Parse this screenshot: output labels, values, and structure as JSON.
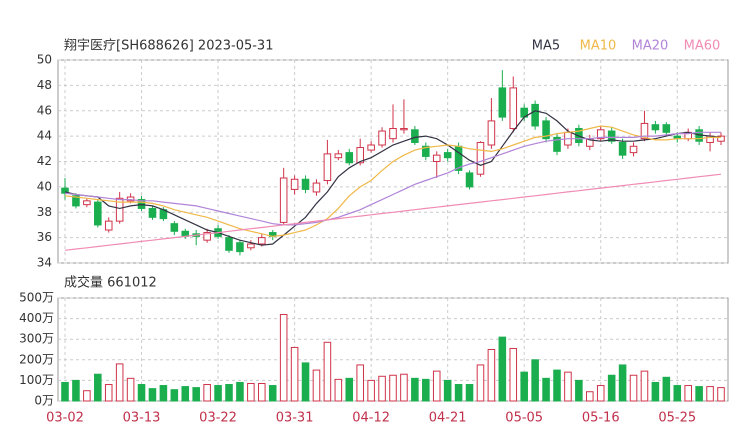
{
  "chart_data": {
    "type": "candlestick",
    "title": "翔宇医疗[SH688626] 2023-05-31",
    "categories": [
      "03-02",
      null,
      null,
      null,
      null,
      null,
      null,
      "03-13",
      null,
      null,
      null,
      null,
      null,
      null,
      "03-22",
      null,
      null,
      null,
      null,
      null,
      null,
      "03-31",
      null,
      null,
      null,
      null,
      null,
      null,
      "04-12",
      null,
      null,
      null,
      null,
      null,
      null,
      "04-21",
      null,
      null,
      null,
      null,
      null,
      null,
      "05-05",
      null,
      null,
      null,
      null,
      null,
      null,
      "05-16",
      null,
      null,
      null,
      null,
      null,
      null,
      "05-25",
      null,
      null,
      null,
      null
    ],
    "open": [
      39.9,
      39.3,
      38.6,
      38.8,
      36.6,
      37.3,
      38.9,
      39.0,
      38.3,
      38.2,
      37.1,
      36.5,
      36.3,
      35.8,
      36.7,
      36.0,
      35.6,
      35.2,
      35.5,
      36.4,
      37.2,
      39.8,
      40.6,
      39.6,
      40.5,
      42.3,
      42.7,
      41.9,
      42.9,
      43.3,
      43.8,
      44.5,
      44.5,
      43.2,
      42.0,
      42.7,
      43.2,
      41.1,
      41.0,
      43.3,
      47.8,
      44.6,
      46.2,
      46.5,
      45.2,
      43.9,
      43.3,
      44.6,
      43.2,
      43.8,
      44.4,
      43.5,
      42.7,
      43.8,
      44.9,
      44.9,
      44.0,
      43.8,
      44.5,
      43.5,
      43.6
    ],
    "high": [
      40.7,
      39.5,
      39.1,
      39.0,
      37.6,
      39.6,
      39.5,
      39.3,
      38.5,
      38.4,
      37.3,
      36.7,
      36.6,
      36.7,
      37.0,
      36.2,
      35.8,
      35.8,
      36.3,
      36.6,
      41.5,
      40.9,
      40.9,
      40.6,
      43.7,
      42.9,
      43.0,
      43.8,
      43.6,
      44.7,
      46.5,
      46.9,
      44.8,
      43.5,
      42.8,
      43.0,
      43.5,
      41.3,
      43.6,
      47.0,
      49.2,
      48.7,
      46.5,
      46.8,
      45.5,
      44.2,
      44.6,
      44.9,
      44.1,
      44.8,
      44.7,
      43.8,
      43.5,
      46.0,
      45.2,
      45.1,
      44.3,
      44.6,
      44.8,
      44.3,
      44.3
    ],
    "low": [
      39.0,
      38.3,
      38.4,
      36.8,
      36.4,
      37.1,
      38.7,
      38.1,
      37.4,
      37.3,
      36.2,
      35.9,
      35.4,
      35.6,
      35.9,
      34.8,
      34.6,
      35.0,
      35.3,
      35.8,
      37.0,
      39.4,
      39.5,
      39.3,
      40.2,
      42.1,
      41.7,
      41.7,
      42.7,
      43.1,
      43.5,
      44.2,
      43.3,
      42.1,
      40.7,
      42.0,
      41.0,
      39.8,
      40.8,
      43.0,
      45.2,
      44.3,
      45.2,
      44.5,
      43.5,
      42.5,
      43.0,
      43.2,
      42.9,
      43.6,
      43.4,
      42.2,
      42.4,
      43.6,
      44.2,
      44.0,
      43.5,
      43.6,
      43.3,
      42.8,
      43.3
    ],
    "close": [
      39.5,
      38.5,
      38.9,
      37.0,
      37.3,
      39.1,
      39.2,
      38.3,
      37.6,
      37.5,
      36.5,
      36.1,
      36.1,
      36.4,
      36.1,
      35.0,
      34.9,
      35.5,
      36.0,
      36.1,
      40.7,
      40.6,
      39.8,
      40.3,
      42.6,
      42.6,
      41.9,
      43.1,
      43.3,
      44.4,
      44.6,
      44.6,
      43.5,
      42.4,
      42.5,
      42.3,
      41.3,
      40.0,
      43.5,
      45.2,
      45.5,
      47.8,
      45.5,
      44.8,
      43.8,
      42.8,
      44.3,
      43.5,
      43.8,
      44.5,
      43.6,
      42.5,
      43.2,
      45.0,
      44.5,
      44.3,
      43.8,
      44.3,
      43.6,
      44.0,
      44.0
    ],
    "up_color": "#d0334a",
    "down_color": "#1aae4f",
    "ylim": [
      34,
      50
    ],
    "yticks": [
      34,
      36,
      38,
      40,
      42,
      44,
      46,
      48,
      50
    ],
    "grid": true,
    "ma": [
      {
        "name": "MA5",
        "color": "#333344",
        "values": [
          39.6,
          39.4,
          39.3,
          39.2,
          38.5,
          38.3,
          38.5,
          38.6,
          38.5,
          38.2,
          37.8,
          37.4,
          37.0,
          36.6,
          36.4,
          36.1,
          35.8,
          35.6,
          35.4,
          35.5,
          36.2,
          36.9,
          37.6,
          38.7,
          39.6,
          40.8,
          41.5,
          42.0,
          42.3,
          42.8,
          43.3,
          43.6,
          43.9,
          44.0,
          43.8,
          43.3,
          42.7,
          42.1,
          41.7,
          42.0,
          43.2,
          44.4,
          45.5,
          46.0,
          45.8,
          45.2,
          44.4,
          44.0,
          43.7,
          43.6,
          43.7,
          43.6,
          43.6,
          43.7,
          43.8,
          44.0,
          44.2,
          44.3,
          44.1,
          44.0,
          43.9
        ]
      },
      {
        "name": "MA10",
        "color": "#f0b848",
        "values": [
          39.3,
          39.2,
          39.1,
          39.0,
          38.9,
          38.8,
          38.8,
          38.8,
          38.7,
          38.5,
          38.2,
          38.0,
          37.8,
          37.6,
          37.3,
          37.0,
          36.7,
          36.5,
          36.3,
          36.1,
          36.2,
          36.4,
          36.6,
          37.0,
          37.5,
          38.3,
          39.3,
          40.0,
          40.5,
          41.3,
          42.0,
          42.5,
          42.9,
          43.1,
          43.2,
          43.3,
          43.2,
          43.0,
          42.9,
          42.8,
          43.0,
          43.3,
          43.6,
          43.9,
          44.0,
          44.2,
          44.3,
          44.4,
          44.6,
          44.8,
          44.7,
          44.4,
          44.1,
          43.9,
          43.7,
          43.7,
          43.8,
          43.8,
          43.8,
          43.9,
          43.9
        ]
      },
      {
        "name": "MA20",
        "color": "#b184d8",
        "values": [
          39.5,
          39.4,
          39.3,
          39.2,
          39.1,
          39.0,
          39.0,
          38.9,
          38.9,
          38.8,
          38.7,
          38.6,
          38.5,
          38.3,
          38.1,
          37.9,
          37.7,
          37.5,
          37.3,
          37.1,
          37.0,
          37.0,
          37.1,
          37.2,
          37.4,
          37.6,
          37.9,
          38.2,
          38.6,
          39.0,
          39.4,
          39.8,
          40.2,
          40.5,
          40.8,
          41.1,
          41.5,
          41.8,
          42.0,
          42.3,
          42.6,
          42.9,
          43.2,
          43.4,
          43.6,
          43.7,
          43.8,
          43.8,
          43.8,
          43.9,
          43.9,
          43.9,
          43.9,
          44.0,
          44.0,
          44.1,
          44.2,
          44.2,
          44.3,
          44.3,
          44.3
        ]
      },
      {
        "name": "MA60",
        "color": "#f08cb4",
        "values": [
          35.0,
          35.1,
          35.2,
          35.3,
          35.4,
          35.5,
          35.6,
          35.7,
          35.8,
          35.9,
          36.0,
          36.1,
          36.2,
          36.3,
          36.4,
          36.5,
          36.6,
          36.7,
          36.8,
          36.9,
          37.0,
          37.1,
          37.2,
          37.3,
          37.4,
          37.5,
          37.6,
          37.7,
          37.8,
          37.9,
          38.0,
          38.1,
          38.2,
          38.3,
          38.4,
          38.5,
          38.6,
          38.7,
          38.8,
          38.9,
          39.0,
          39.1,
          39.2,
          39.3,
          39.4,
          39.5,
          39.6,
          39.7,
          39.8,
          39.9,
          40.0,
          40.1,
          40.2,
          40.3,
          40.4,
          40.5,
          40.6,
          40.7,
          40.8,
          40.9,
          41.0
        ]
      }
    ],
    "volume": {
      "label": "成交量 661012",
      "values": [
        90,
        100,
        50,
        130,
        80,
        180,
        110,
        80,
        60,
        75,
        55,
        70,
        65,
        80,
        75,
        80,
        90,
        85,
        85,
        75,
        420,
        260,
        185,
        150,
        285,
        105,
        110,
        175,
        100,
        120,
        125,
        130,
        110,
        105,
        145,
        100,
        80,
        80,
        175,
        250,
        310,
        255,
        140,
        200,
        110,
        150,
        140,
        100,
        45,
        75,
        125,
        175,
        125,
        145,
        90,
        115,
        75,
        75,
        70,
        70,
        65
      ],
      "ylim": [
        0,
        500
      ],
      "yticks": [
        {
          "value": 0,
          "label": "0万"
        },
        {
          "value": 100,
          "label": "100万"
        },
        {
          "value": 200,
          "label": "200万"
        },
        {
          "value": 300,
          "label": "300万"
        },
        {
          "value": 400,
          "label": "400万"
        },
        {
          "value": 500,
          "label": "500万"
        }
      ]
    }
  }
}
